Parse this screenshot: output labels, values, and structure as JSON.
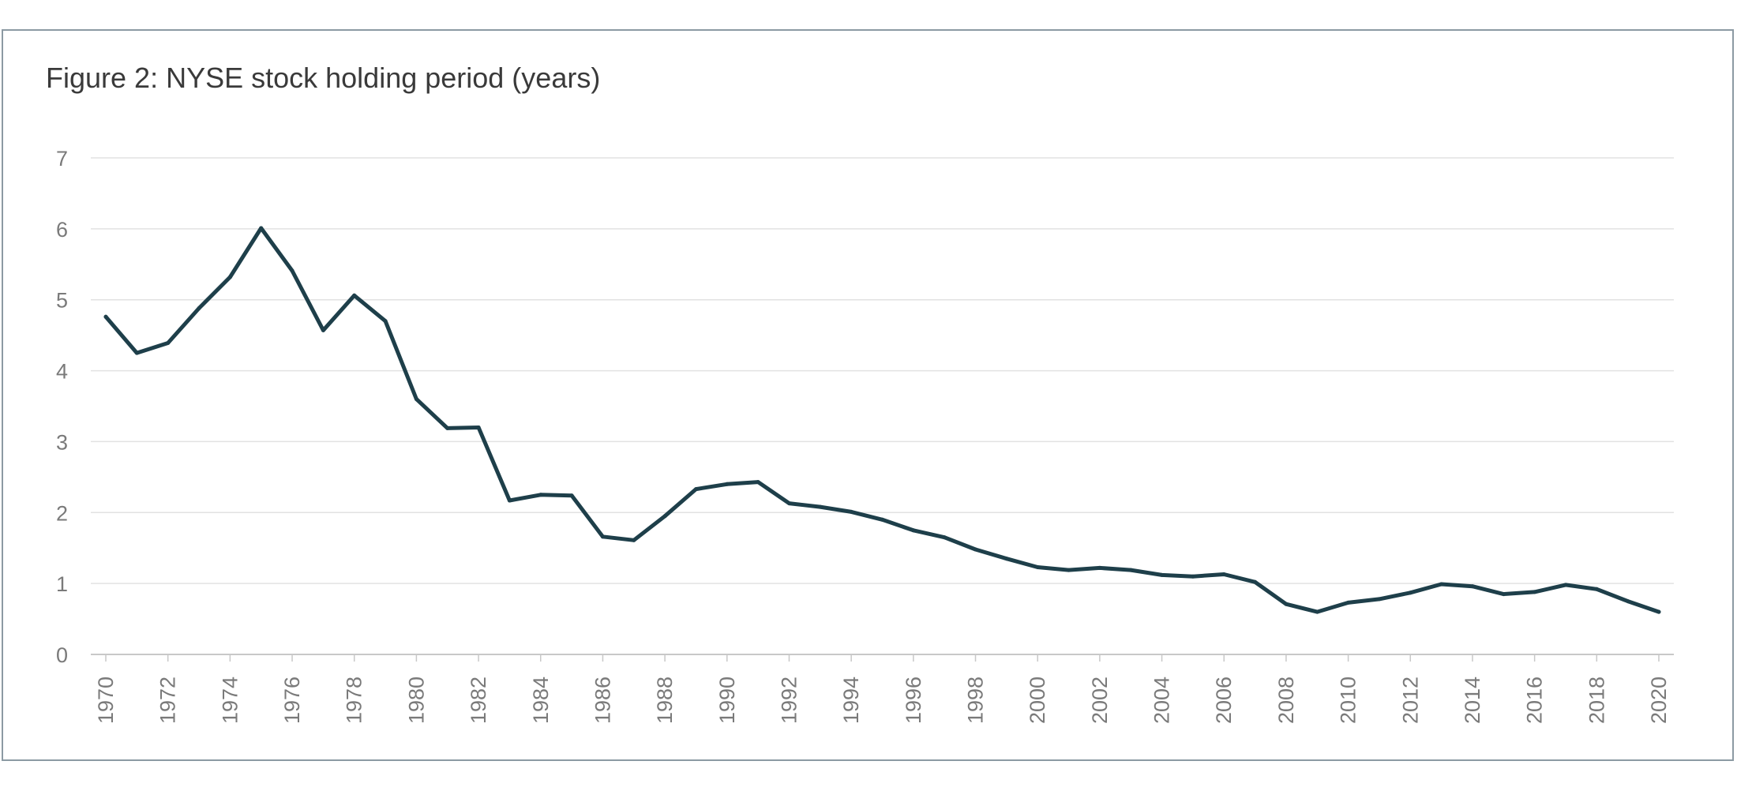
{
  "chart_data": {
    "type": "line",
    "title": "Figure 2: NYSE stock holding period (years)",
    "xlabel": "",
    "ylabel": "",
    "ylim": [
      0,
      7
    ],
    "yticks": [
      0,
      1,
      2,
      3,
      4,
      5,
      6,
      7
    ],
    "xlim": [
      1970,
      2020
    ],
    "xticks": [
      1970,
      1972,
      1974,
      1976,
      1978,
      1980,
      1982,
      1984,
      1986,
      1988,
      1990,
      1992,
      1994,
      1996,
      1998,
      2000,
      2002,
      2004,
      2006,
      2008,
      2010,
      2012,
      2014,
      2016,
      2018,
      2020
    ],
    "grid": "horizontal",
    "legend": "none",
    "line_color": "#1e3f4a",
    "x": [
      1970,
      1971,
      1972,
      1973,
      1974,
      1975,
      1976,
      1977,
      1978,
      1979,
      1980,
      1981,
      1982,
      1983,
      1984,
      1985,
      1986,
      1987,
      1988,
      1989,
      1990,
      1991,
      1992,
      1993,
      1994,
      1995,
      1996,
      1997,
      1998,
      1999,
      2000,
      2001,
      2002,
      2003,
      2004,
      2005,
      2006,
      2007,
      2008,
      2009,
      2010,
      2011,
      2012,
      2013,
      2014,
      2015,
      2016,
      2017,
      2018,
      2019,
      2020
    ],
    "series": [
      {
        "values": [
          4.76,
          4.25,
          4.39,
          4.88,
          5.32,
          6.01,
          5.41,
          4.57,
          5.06,
          4.7,
          3.6,
          3.19,
          3.2,
          2.17,
          2.25,
          2.24,
          1.66,
          1.61,
          1.95,
          2.33,
          2.4,
          2.43,
          2.13,
          2.08,
          2.01,
          1.9,
          1.75,
          1.65,
          1.48,
          1.35,
          1.23,
          1.19,
          1.22,
          1.19,
          1.12,
          1.1,
          1.13,
          1.02,
          0.71,
          0.6,
          0.73,
          0.78,
          0.87,
          0.99,
          0.96,
          0.85,
          0.88,
          0.98,
          0.92,
          0.75,
          0.6
        ]
      }
    ]
  }
}
